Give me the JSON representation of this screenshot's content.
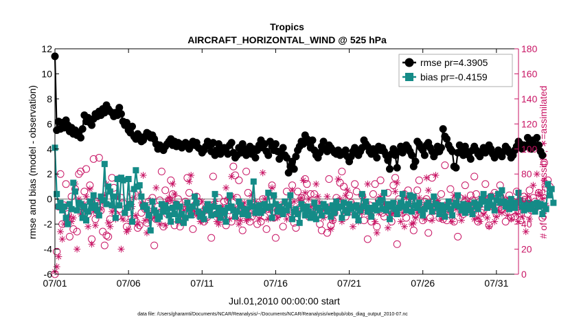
{
  "chart_data": {
    "type": "line",
    "title": "Tropics",
    "subtitle": "AIRCRAFT_HORIZONTAL_WIND @ 525 hPa",
    "xlabel": "Jul.01,2010 00:00:00 start",
    "ylabel": "rmse and bias (model - observation)",
    "y2label": "# of obs: o=possible; ∗=assimilated",
    "footnote": "data file: /Users/gharamti/Documents/NCAR/Reanalysis/~/Documents/NCAR/Reanalysis/webpub/obs_diag_output_2010-07.nc",
    "xlim": [
      0,
      31.5
    ],
    "ylim": [
      -6,
      12
    ],
    "y2lim": [
      0,
      180
    ],
    "xticks": [
      0,
      5,
      10,
      15,
      20,
      25,
      30
    ],
    "xtick_labels": [
      "07/01",
      "07/06",
      "07/11",
      "07/16",
      "07/21",
      "07/26",
      "07/31"
    ],
    "yticks": [
      -6,
      -4,
      -2,
      0,
      2,
      4,
      6,
      8,
      10,
      12
    ],
    "ytick_labels": [
      "-6",
      "-4",
      "-2",
      "0",
      "2",
      "4",
      "6",
      "8",
      "10",
      "12"
    ],
    "y2ticks": [
      0,
      20,
      40,
      60,
      80,
      100,
      120,
      140,
      160,
      180
    ],
    "y2tick_labels": [
      "0",
      "20",
      "40",
      "60",
      "80",
      "100",
      "120",
      "140",
      "160",
      "180"
    ],
    "x_step_days": 0.125,
    "legend_position": "top-right",
    "colors": {
      "rmse": "#000000",
      "bias": "#148B87",
      "obs": "#C81464",
      "zero_line": "#B0B0B0"
    },
    "series": [
      {
        "name": "rmse pr=4.3905",
        "axis": "left",
        "marker": "circle",
        "values": [
          11.4,
          5.5,
          6.2,
          5.6,
          6.1,
          5.7,
          6.3,
          5.9,
          5.4,
          5.7,
          5.2,
          5.5,
          5.1,
          5.3,
          4.9,
          5.6,
          6.7,
          6.2,
          6.5,
          6.1,
          5.9,
          6.4,
          6.8,
          6.6,
          7.0,
          6.7,
          7.2,
          6.9,
          7.5,
          7.2,
          7.0,
          6.9,
          6.6,
          6.9,
          6.7,
          7.3,
          6.8,
          6.2,
          5.9,
          6.1,
          5.5,
          5.3,
          5.8,
          5.0,
          4.8,
          5.2,
          5.0,
          4.6,
          4.7,
          5.0,
          5.3,
          5.2,
          4.9,
          5.1,
          4.8,
          4.4,
          4.0,
          4.3,
          4.1,
          3.9,
          4.2,
          4.4,
          4.6,
          4.8,
          4.3,
          4.6,
          4.2,
          4.5,
          4.4,
          4.1,
          4.3,
          4.5,
          4.2,
          4.0,
          4.4,
          4.6,
          4.3,
          4.5,
          4.1,
          4.0,
          3.7,
          3.9,
          4.2,
          4.6,
          4.3,
          3.8,
          4.5,
          3.5,
          3.9,
          4.4,
          3.6,
          3.9,
          4.1,
          3.8,
          3.6,
          4.3,
          4.5,
          3.7,
          3.3,
          3.5,
          4.1,
          3.7,
          4.4,
          4.0,
          3.5,
          3.8,
          4.2,
          3.6,
          4.0,
          3.3,
          3.9,
          4.3,
          4.7,
          4.1,
          4.4,
          3.8,
          3.5,
          4.6,
          4.2,
          3.9,
          4.4,
          3.8,
          3.2,
          3.7,
          4.1,
          3.5,
          3.3,
          2.1,
          2.6,
          3.0,
          2.4,
          3.4,
          3.9,
          4.2,
          4.6,
          4.4,
          5.1,
          4.8,
          4.5,
          4.1,
          4.7,
          3.9,
          3.5,
          3.3,
          3.7,
          4.2,
          4.6,
          4.0,
          3.8,
          4.3,
          4.1,
          3.9,
          3.7,
          3.6,
          3.9,
          3.5,
          3.7,
          3.6,
          3.9,
          3.4,
          3.0,
          3.4,
          3.8,
          4.1,
          3.7,
          3.5,
          3.8,
          4.1,
          4.7,
          4.4,
          4.2,
          3.8,
          3.6,
          4.0,
          3.7,
          3.3,
          4.2,
          3.9,
          4.1,
          3.8,
          3.5,
          3.1,
          2.4,
          3.6,
          4.0,
          3.5,
          2.5,
          3.8,
          4.2,
          3.7,
          4.0,
          4.3,
          4.1,
          3.8,
          3.5,
          2.6,
          3.0,
          4.6,
          4.4,
          4.1,
          3.9,
          3.5,
          4.3,
          4.5,
          4.1,
          3.8,
          3.4,
          3.7,
          4.2,
          3.8,
          4.1,
          5.6,
          5.0,
          4.8,
          4.3,
          4.0,
          3.8,
          2.6,
          2.5,
          3.7,
          4.3,
          4.0,
          3.5,
          4.2,
          3.8,
          3.5,
          3.2,
          3.9,
          4.2,
          3.9,
          3.6,
          3.4,
          3.8,
          4.1,
          3.7,
          3.9,
          4.3,
          4.0,
          3.6,
          3.3,
          3.6,
          3.9,
          3.7,
          3.4,
          3.8,
          4.2,
          4.0,
          3.7,
          3.3,
          3.5,
          3.9,
          4.2,
          4.6,
          4.4,
          4.0,
          4.3,
          4.2,
          4.9,
          4.5,
          4.0,
          4.7,
          4.2,
          4.9,
          4.3,
          3.8,
          3.5
        ]
      },
      {
        "name": "bias pr=-0.4159",
        "axis": "left",
        "marker": "square",
        "values": [
          4.1,
          0.4,
          -0.6,
          -0.3,
          -0.9,
          -0.6,
          -1.5,
          -2.0,
          -0.4,
          -0.8,
          1.3,
          0.6,
          -0.9,
          -0.3,
          -0.4,
          -1.5,
          -0.6,
          -1.7,
          -1.0,
          -0.2,
          -0.7,
          0.3,
          -0.5,
          -0.9,
          -1.3,
          0.2,
          -0.1,
          2.8,
          -0.4,
          1.0,
          0.6,
          -0.5,
          0.2,
          -1.5,
          1.6,
          -0.5,
          1.7,
          1.5,
          -1.1,
          -0.7,
          1.6,
          -0.4,
          -1.8,
          0.8,
          2.3,
          1.0,
          1.1,
          0.2,
          -0.6,
          -0.5,
          -0.8,
          -1.3,
          -2.5,
          -0.2,
          -0.9,
          -1.1,
          -1.6,
          -1.4,
          -0.4,
          -1.0,
          -0.5,
          -0.8,
          -1.3,
          -1.8,
          -0.7,
          -1.2,
          -0.4,
          -1.7,
          -0.6,
          -1.2,
          -1.9,
          -1.5,
          -0.3,
          -0.8,
          -1.3,
          -0.6,
          0.2,
          -0.3,
          -1.0,
          -1.4,
          -1.2,
          -1.6,
          -0.8,
          -0.4,
          -0.9,
          -1.3,
          -0.6,
          0.4,
          -1.2,
          -0.7,
          -1.5,
          -0.9,
          -1.1,
          -1.8,
          -0.7,
          0.3,
          -0.6,
          -0.9,
          -1.4,
          -1.0,
          -0.2,
          -0.5,
          -1.2,
          -1.0,
          -0.8,
          -1.3,
          -0.3,
          -0.6,
          1.4,
          -1.1,
          -0.7,
          -0.5,
          -1.1,
          -0.9,
          -0.4,
          -0.7,
          0.5,
          -0.6,
          -1.5,
          0.3,
          -0.4,
          -1.0,
          -0.6,
          -0.8,
          -1.2,
          -0.2,
          -0.9,
          -0.5,
          0.3,
          -1.6,
          -1.0,
          -0.8,
          -1.2,
          -1.9,
          -0.4,
          -0.8,
          -1.3,
          -0.6,
          -1.0,
          -1.5,
          -1.2,
          -0.3,
          -1.6,
          -0.7,
          -0.9,
          -1.3,
          -0.4,
          -0.6,
          -1.0,
          -0.8,
          -1.4,
          -0.5,
          -1.1,
          -0.2,
          -0.7,
          -0.6,
          -1.5,
          -0.3,
          -0.9,
          -1.1,
          -0.4,
          -0.8,
          -0.6,
          -1.3,
          -0.5,
          -1.7,
          -0.9,
          0.4,
          -0.6,
          -0.2,
          -1.0,
          -0.7,
          -1.4,
          -0.8,
          -0.5,
          -0.9,
          -0.3,
          -0.1,
          -0.8,
          0.5,
          -0.9,
          -0.4,
          -1.6,
          -0.6,
          -0.3,
          -0.8,
          -1.2,
          -0.7,
          -0.3,
          0.4,
          -0.6,
          -0.9,
          -0.4,
          0.3,
          -1.0,
          0.2,
          -0.5,
          -0.7,
          -0.3,
          -0.9,
          -1.3,
          -0.8,
          -0.5,
          -0.3,
          -0.6,
          -1.0,
          0.2,
          -0.4,
          -0.7,
          -1.2,
          -0.5,
          -0.9,
          -1.4,
          -0.6,
          -0.2,
          -0.8,
          -1.3,
          -0.5,
          -0.3,
          0.3,
          -0.6,
          -0.9,
          -0.4,
          -1.1,
          -0.7,
          -0.5,
          -0.9,
          -1.2,
          -0.3,
          -0.6,
          -0.8,
          -0.4,
          0.0,
          0.4,
          -0.2,
          -0.7,
          -0.3,
          0.2,
          -0.5,
          -0.9,
          -0.1,
          0.4,
          -0.3,
          0.7,
          -0.2,
          -0.6,
          -0.3,
          -0.8,
          0.0,
          -0.4,
          -0.7,
          -0.3,
          0.5,
          -0.1,
          -0.6,
          -0.9,
          -0.5,
          -0.3,
          -0.8,
          -0.6,
          -0.4,
          -1.0,
          -0.3,
          -0.6,
          -0.4,
          -1.2,
          -0.5,
          -0.8,
          1.2,
          0.3,
          0.8,
          -0.3
        ]
      },
      {
        "name": "# of obs possible",
        "axis": "right",
        "marker": "open-circle",
        "values": [
          0,
          18,
          54,
          80,
          40,
          55,
          72,
          48,
          30,
          62,
          36,
          68,
          34,
          80,
          82,
          54,
          66,
          84,
          48,
          71,
          28,
          92,
          44,
          58,
          93,
          51,
          34,
          23,
          31,
          30,
          44,
          77,
          69,
          48,
          46,
          52,
          61,
          57,
          45,
          38,
          49,
          56,
          64,
          44,
          42,
          37,
          39,
          49,
          55,
          52,
          41,
          58,
          47,
          61,
          23,
          44,
          54,
          59,
          82,
          38,
          67,
          48,
          59,
          75,
          64,
          39,
          56,
          60,
          38,
          52,
          44,
          58,
          77,
          65,
          49,
          36,
          55,
          62,
          58,
          48,
          44,
          42,
          53,
          46,
          55,
          29,
          78,
          51,
          48,
          61,
          44,
          46,
          58,
          39,
          59,
          51,
          42,
          86,
          79,
          61,
          75,
          55,
          35,
          52,
          82,
          65,
          42,
          46,
          56,
          53,
          40,
          48,
          42,
          60,
          46,
          36,
          52,
          63,
          71,
          45,
          29,
          51,
          48,
          55,
          38,
          54,
          66,
          57,
          49,
          71,
          41,
          37,
          66,
          53,
          61,
          55,
          76,
          72,
          46,
          64,
          52,
          64,
          47,
          56,
          40,
          35,
          54,
          48,
          33,
          76,
          39,
          43,
          49,
          61,
          58,
          73,
          82,
          70,
          46,
          51,
          63,
          57,
          55,
          72,
          66,
          47,
          51,
          63,
          43,
          56,
          28,
          55,
          42,
          64,
          72,
          38,
          59,
          75,
          49,
          46,
          52,
          65,
          53,
          42,
          71,
          77,
          24,
          60,
          56,
          49,
          64,
          45,
          67,
          51,
          59,
          35,
          48,
          67,
          75,
          55,
          43,
          58,
          60,
          33,
          45,
          77,
          58,
          51,
          56,
          45,
          64,
          44,
          87,
          43,
          52,
          68,
          56,
          42,
          60,
          30,
          61,
          53,
          48,
          71,
          56,
          52,
          63,
          59,
          78,
          64,
          42,
          58,
          49,
          51,
          72,
          60,
          39,
          62,
          54,
          65,
          48,
          53,
          71,
          52,
          57,
          42,
          56,
          63,
          45,
          58,
          46,
          66,
          51,
          43,
          56,
          62,
          55,
          48,
          67,
          51,
          61,
          58,
          54,
          65,
          55,
          45,
          89,
          69,
          75,
          70
        ]
      },
      {
        "name": "# of obs assimilated",
        "axis": "right",
        "marker": "asterisk",
        "values": [
          2,
          6,
          14,
          34,
          28,
          40,
          54,
          44,
          46,
          42,
          45,
          72,
          20,
          60,
          48,
          53,
          56,
          62,
          38,
          68,
          24,
          50,
          39,
          47,
          59,
          52,
          57,
          63,
          72,
          41,
          38,
          50,
          53,
          44,
          62,
          77,
          20,
          44,
          49,
          34,
          36,
          42,
          54,
          61,
          47,
          40,
          64,
          57,
          79,
          43,
          33,
          43,
          59,
          51,
          45,
          69,
          46,
          40,
          52,
          50,
          39,
          58,
          61,
          59,
          72,
          64,
          55,
          42,
          44,
          41,
          51,
          56,
          54,
          74,
          79,
          52,
          50,
          47,
          48,
          42,
          58,
          51,
          43,
          55,
          53,
          48,
          56,
          58,
          42,
          40,
          45,
          54,
          48,
          69,
          60,
          44,
          78,
          62,
          53,
          44,
          40,
          43,
          49,
          57,
          43,
          44,
          52,
          63,
          48,
          58,
          50,
          44,
          56,
          81,
          60,
          52,
          44,
          51,
          69,
          62,
          55,
          45,
          48,
          54,
          51,
          57,
          44,
          49,
          55,
          67,
          58,
          49,
          51,
          59,
          61,
          75,
          65,
          52,
          60,
          54,
          48,
          53,
          72,
          62,
          57,
          47,
          45,
          52,
          62,
          54,
          36,
          43,
          53,
          58,
          76,
          60,
          42,
          57,
          63,
          67,
          49,
          55,
          38,
          54,
          55,
          42,
          54,
          49,
          60,
          53,
          72,
          46,
          47,
          53,
          42,
          33,
          49,
          62,
          53,
          56,
          50,
          37,
          47,
          48,
          49,
          66,
          73,
          53,
          42,
          49,
          38,
          61,
          55,
          58,
          40,
          41,
          45,
          49,
          61,
          53,
          51,
          44,
          77,
          67,
          58,
          43,
          50,
          79,
          59,
          53,
          44,
          46,
          55,
          56,
          50,
          58,
          42,
          63,
          52,
          54,
          48,
          43,
          51,
          61,
          56,
          58,
          49,
          56,
          44,
          51,
          45,
          42,
          59,
          48,
          61,
          45,
          38,
          54,
          63,
          42,
          46,
          51,
          55,
          49,
          61,
          52,
          47,
          60,
          44,
          54,
          56,
          48,
          42,
          52,
          46,
          56,
          34,
          62,
          44,
          55,
          71,
          51,
          80,
          65,
          63,
          60,
          75,
          55
        ]
      }
    ]
  }
}
